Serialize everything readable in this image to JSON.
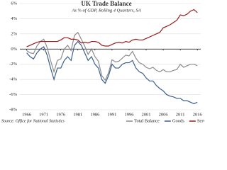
{
  "chart_data": {
    "type": "line",
    "title": "UK Trade Balance",
    "subtitle": "As % of GDP, Rolling 4 Quarters, SA",
    "source": "Source: Office for National Statistics",
    "x": [
      1966,
      1967,
      1968,
      1969,
      1970,
      1971,
      1972,
      1973,
      1974,
      1975,
      1976,
      1977,
      1978,
      1979,
      1980,
      1981,
      1982,
      1983,
      1984,
      1985,
      1986,
      1987,
      1988,
      1989,
      1990,
      1991,
      1992,
      1993,
      1994,
      1995,
      1996,
      1997,
      1998,
      1999,
      2000,
      2001,
      2002,
      2003,
      2004,
      2005,
      2006,
      2007,
      2008,
      2009,
      2010,
      2011,
      2012,
      2013,
      2014,
      2015,
      2016
    ],
    "series": [
      {
        "name": "Total Balance",
        "color": "#8c8c8c",
        "values": [
          -0.2,
          -0.5,
          -0.6,
          0.4,
          1,
          1.3,
          0.2,
          -1.5,
          -3,
          -1.5,
          -1.3,
          0,
          0.5,
          -0.2,
          1.8,
          2.2,
          1.3,
          0.4,
          -0.7,
          0,
          -1,
          -1.6,
          -3.5,
          -4.1,
          -3.1,
          -1.4,
          -1.7,
          -1.6,
          -1.2,
          -0.8,
          -0.9,
          -0.3,
          -1.2,
          -1.8,
          -2,
          -2.4,
          -2.6,
          -2.4,
          -2.8,
          -3,
          -2.7,
          -3,
          -3,
          -2.8,
          -2.7,
          -2,
          -2.4,
          -2.2,
          -2,
          -2,
          -2.2
        ]
      },
      {
        "name": "Goods",
        "color": "#3b5f8f",
        "values": [
          -0.5,
          -1,
          -1.3,
          -0.5,
          0,
          0.3,
          -0.8,
          -2.5,
          -4,
          -2.5,
          -2.5,
          -1.5,
          -1,
          -1.5,
          0.5,
          1,
          0.5,
          -0.5,
          -1.5,
          -1,
          -2,
          -2.5,
          -4,
          -4.5,
          -3.5,
          -2,
          -2.5,
          -2.5,
          -2,
          -1.8,
          -1.8,
          -1.5,
          -2.5,
          -3,
          -3.2,
          -3.8,
          -4.2,
          -4.2,
          -4.8,
          -5.2,
          -5.5,
          -6,
          -6.2,
          -6.3,
          -6.5,
          -6.5,
          -6.8,
          -6.8,
          -7,
          -7.2,
          -7
        ]
      },
      {
        "name": "Services",
        "color": "#9b1c1c",
        "values": [
          0.3,
          0.5,
          0.7,
          0.9,
          1,
          1,
          1,
          1,
          1,
          1,
          1.2,
          1.5,
          1.5,
          1.3,
          1.3,
          1.2,
          0.8,
          0.9,
          0.8,
          1,
          1,
          0.9,
          0.5,
          0.4,
          0.4,
          0.6,
          0.8,
          0.9,
          0.8,
          1,
          0.9,
          1.2,
          1.3,
          1.2,
          1.2,
          1.4,
          1.6,
          1.8,
          2,
          2.2,
          2.8,
          3,
          3.2,
          3.5,
          3.8,
          4.5,
          4.4,
          4.6,
          5,
          5.2,
          4.8
        ]
      }
    ],
    "xlim": [
      1964,
      2017
    ],
    "xticks": [
      1966,
      1971,
      1976,
      1981,
      1986,
      1991,
      1996,
      2001,
      2006,
      2011,
      2016
    ],
    "ylim": [
      -8,
      6
    ],
    "yticks": [
      {
        "value": -8,
        "label": "-8%"
      },
      {
        "value": -6,
        "label": "-6%"
      },
      {
        "value": -4,
        "label": "-4%"
      },
      {
        "value": -2,
        "label": "-2%"
      },
      {
        "value": 0,
        "label": "0%"
      },
      {
        "value": 2,
        "label": "2%"
      },
      {
        "value": 4,
        "label": "4%"
      },
      {
        "value": 6,
        "label": "6%"
      }
    ],
    "grid": true,
    "legend": "bottom-right"
  }
}
